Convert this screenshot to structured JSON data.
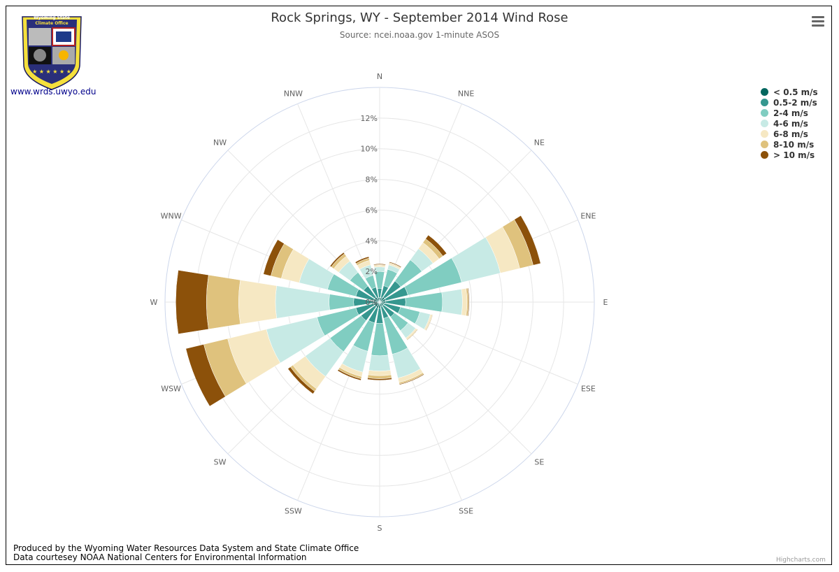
{
  "header": {
    "title": "Rock Springs, WY - September 2014 Wind Rose",
    "subtitle": "Source: ncei.noaa.gov 1-minute ASOS"
  },
  "logo": {
    "line1": "Wyoming State",
    "line2": "Climate Office",
    "link_text": "www.wrds.uwyo.edu"
  },
  "footer": {
    "line1": "Produced by the Wyoming Water Resources Data System and State Climate Office",
    "line2": "Data courtesey NOAA National Centers for Environmental Information",
    "highcharts": "Highcharts.com"
  },
  "icons": {
    "menu": "hamburger-menu-icon"
  },
  "chart_data": {
    "type": "windrose",
    "directions": [
      "N",
      "NNE",
      "NE",
      "ENE",
      "E",
      "ESE",
      "SE",
      "SSE",
      "S",
      "SSW",
      "SW",
      "WSW",
      "W",
      "WNW",
      "NW",
      "NNW"
    ],
    "radial_ticks": [
      "0%",
      "2%",
      "4%",
      "6%",
      "8%",
      "10%",
      "12%"
    ],
    "rmax": 14,
    "series": [
      {
        "name": "< 0.5 m/s",
        "color": "#01665e",
        "values": [
          0.3,
          0.3,
          0.4,
          0.4,
          0.4,
          0.3,
          0.3,
          0.3,
          0.4,
          0.4,
          0.4,
          0.4,
          0.4,
          0.4,
          0.4,
          0.3
        ]
      },
      {
        "name": "0.5-2 m/s",
        "color": "#35978f",
        "values": [
          0.6,
          0.8,
          1.3,
          1.5,
          1.3,
          1.1,
          0.9,
          0.8,
          1.0,
          1.0,
          1.1,
          1.2,
          1.3,
          1.2,
          0.9,
          0.7
        ]
      },
      {
        "name": "2-4 m/s",
        "color": "#80cdc1",
        "values": [
          1.1,
          1.1,
          1.7,
          3.6,
          2.4,
          1.3,
          1.1,
          2.4,
          2.1,
          1.9,
          2.5,
          2.6,
          1.6,
          1.9,
          1.1,
          0.8
        ]
      },
      {
        "name": "4-6 m/s",
        "color": "#c7eae5",
        "values": [
          0.3,
          0.3,
          0.9,
          2.6,
          1.3,
          0.7,
          0.6,
          1.6,
          1.0,
          1.4,
          2.0,
          3.4,
          3.5,
          1.9,
          0.9,
          0.7
        ]
      },
      {
        "name": "6-8 m/s",
        "color": "#f6e8c3",
        "values": [
          0.1,
          0.1,
          0.5,
          1.3,
          0.3,
          0.1,
          0.1,
          0.3,
          0.3,
          0.3,
          1.0,
          2.6,
          2.4,
          1.2,
          0.4,
          0.3
        ]
      },
      {
        "name": "8-10 m/s",
        "color": "#dfc27d",
        "values": [
          0.05,
          0.05,
          0.3,
          0.9,
          0.1,
          0.05,
          0.05,
          0.1,
          0.2,
          0.15,
          0.2,
          1.6,
          2.1,
          0.7,
          0.2,
          0.15
        ]
      },
      {
        "name": "> 10 m/s",
        "color": "#8c510a",
        "values": [
          0.05,
          0.05,
          0.3,
          0.5,
          0.05,
          0.02,
          0.02,
          0.05,
          0.1,
          0.1,
          0.2,
          1.2,
          2.0,
          0.5,
          0.1,
          0.1
        ]
      }
    ],
    "legend_position": "top-right"
  }
}
